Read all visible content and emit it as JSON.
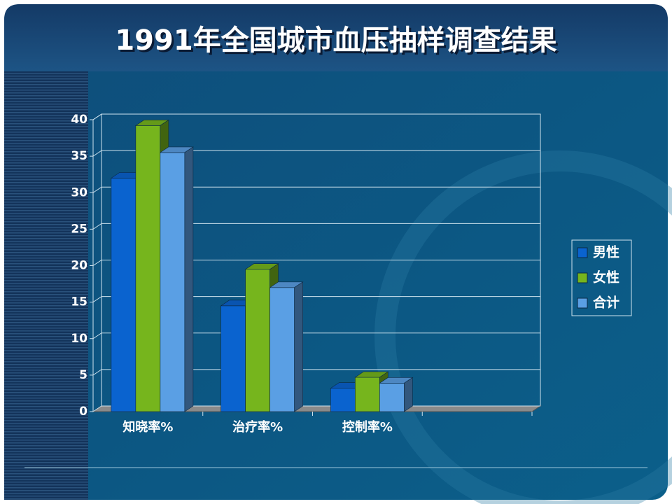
{
  "chart_data": {
    "type": "bar3d",
    "title": "1991年全国城市血压抽样调查结果",
    "categories": [
      "知晓率%",
      "治疗率%",
      "控制率%",
      null
    ],
    "series": [
      {
        "name": "男性",
        "color": "#0a63cf",
        "values": [
          32,
          14.5,
          3.2,
          null
        ]
      },
      {
        "name": "女性",
        "color": "#76b51d",
        "values": [
          39.2,
          19.5,
          4.7,
          null
        ]
      },
      {
        "name": "合计",
        "color": "#5a9fe4",
        "values": [
          35.5,
          17,
          3.9,
          null
        ]
      }
    ],
    "ylim": [
      0,
      40
    ],
    "yticks": [
      0,
      5,
      10,
      15,
      20,
      25,
      30,
      35,
      40
    ],
    "grid": true,
    "legend": "right"
  }
}
